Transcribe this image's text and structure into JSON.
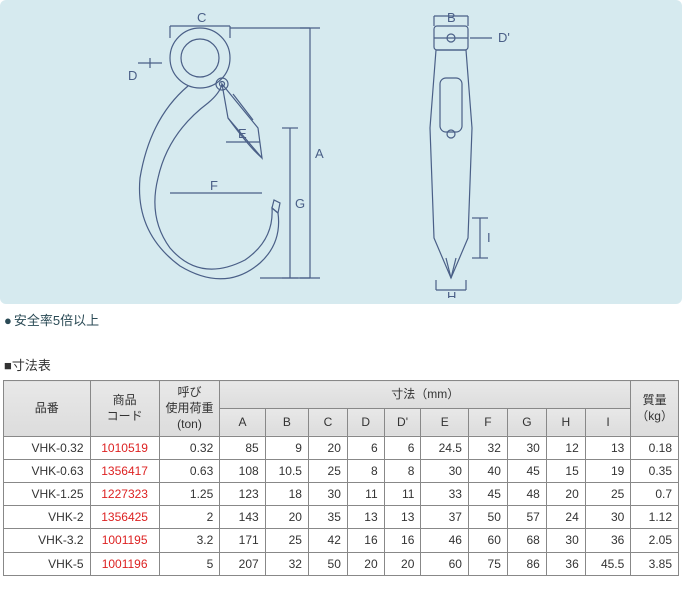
{
  "notes": {
    "safety": "安全率5倍以上",
    "section_title": "寸法表"
  },
  "diagram": {
    "labels": [
      "A",
      "B",
      "C",
      "D",
      "D'",
      "E",
      "F",
      "G",
      "H",
      "I"
    ],
    "line_color": "#4a5f87",
    "bg": "#d6eaef"
  },
  "table": {
    "headers": {
      "part": "品番",
      "code": "商品\nコード",
      "load": "呼び\n使用荷重\n(ton)",
      "dims_group": "寸法（mm）",
      "dims": [
        "A",
        "B",
        "C",
        "D",
        "D'",
        "E",
        "F",
        "G",
        "H",
        "I"
      ],
      "mass": "質量\n（kg）"
    },
    "rows": [
      {
        "part": "VHK-0.32",
        "code": "1010519",
        "load": "0.32",
        "A": "85",
        "B": "9",
        "C": "20",
        "D": "6",
        "Dp": "6",
        "E": "24.5",
        "F": "32",
        "G": "30",
        "H": "12",
        "I": "13",
        "mass": "0.18"
      },
      {
        "part": "VHK-0.63",
        "code": "1356417",
        "load": "0.63",
        "A": "108",
        "B": "10.5",
        "C": "25",
        "D": "8",
        "Dp": "8",
        "E": "30",
        "F": "40",
        "G": "45",
        "H": "15",
        "I": "19",
        "mass": "0.35"
      },
      {
        "part": "VHK-1.25",
        "code": "1227323",
        "load": "1.25",
        "A": "123",
        "B": "18",
        "C": "30",
        "D": "11",
        "Dp": "11",
        "E": "33",
        "F": "45",
        "G": "48",
        "H": "20",
        "I": "25",
        "mass": "0.7"
      },
      {
        "part": "VHK-2",
        "code": "1356425",
        "load": "2",
        "A": "143",
        "B": "20",
        "C": "35",
        "D": "13",
        "Dp": "13",
        "E": "37",
        "F": "50",
        "G": "57",
        "H": "24",
        "I": "30",
        "mass": "1.12"
      },
      {
        "part": "VHK-3.2",
        "code": "1001195",
        "load": "3.2",
        "A": "171",
        "B": "25",
        "C": "42",
        "D": "16",
        "Dp": "16",
        "E": "46",
        "F": "60",
        "G": "68",
        "H": "30",
        "I": "36",
        "mass": "2.05"
      },
      {
        "part": "VHK-5",
        "code": "1001196",
        "load": "5",
        "A": "207",
        "B": "32",
        "C": "50",
        "D": "20",
        "Dp": "20",
        "E": "60",
        "F": "75",
        "G": "86",
        "H": "36",
        "I": "45.5",
        "mass": "3.85"
      }
    ]
  }
}
